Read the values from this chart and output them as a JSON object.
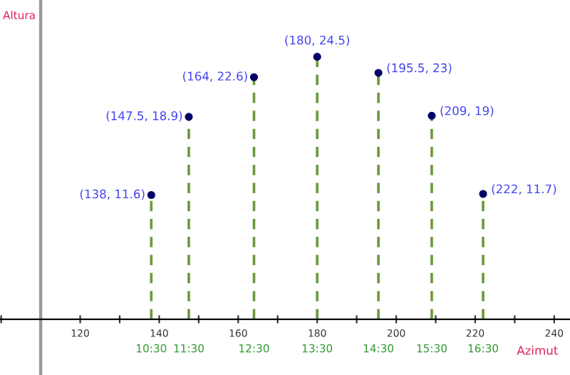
{
  "chart_data": {
    "type": "lollipop",
    "xlabel": "Azimut",
    "ylabel": "Altura",
    "x": [
      138,
      147.5,
      164,
      180,
      195.5,
      209,
      222
    ],
    "series": [
      {
        "color": "#000066",
        "values": [
          11.6,
          18.9,
          22.6,
          24.5,
          23,
          19,
          11.7
        ],
        "value_labels": [
          "(138, 11.6)",
          "(147.5, 18.9)",
          "(164, 22.6)",
          "(180, 24.5)",
          "(195.5, 23)",
          "(209, 19)",
          "(222, 11.7)"
        ]
      }
    ],
    "annotations": [
      "10:30",
      "11:30",
      "12:30",
      "13:30",
      "14:30",
      "15:30",
      "16:30"
    ],
    "xlim": [
      99.7,
      244
    ],
    "ylim": [
      -5.2,
      29.8
    ],
    "xticks": [
      {
        "value": 100,
        "label": null
      },
      {
        "value": 110,
        "label": null
      },
      120,
      {
        "value": 130,
        "label": null
      },
      140,
      {
        "value": 150,
        "label": null
      },
      160,
      {
        "value": 170,
        "label": null
      },
      180,
      {
        "value": 190,
        "label": null
      },
      200,
      {
        "value": 210,
        "label": null
      },
      220,
      {
        "value": 230,
        "label": null
      },
      240
    ],
    "ref_lines": [
      {
        "axis": "x",
        "value": 110,
        "color": "#999999"
      }
    ],
    "tick_labels": "x",
    "marker": "circle",
    "line_style": "dashed",
    "grid": false,
    "legend": false
  }
}
